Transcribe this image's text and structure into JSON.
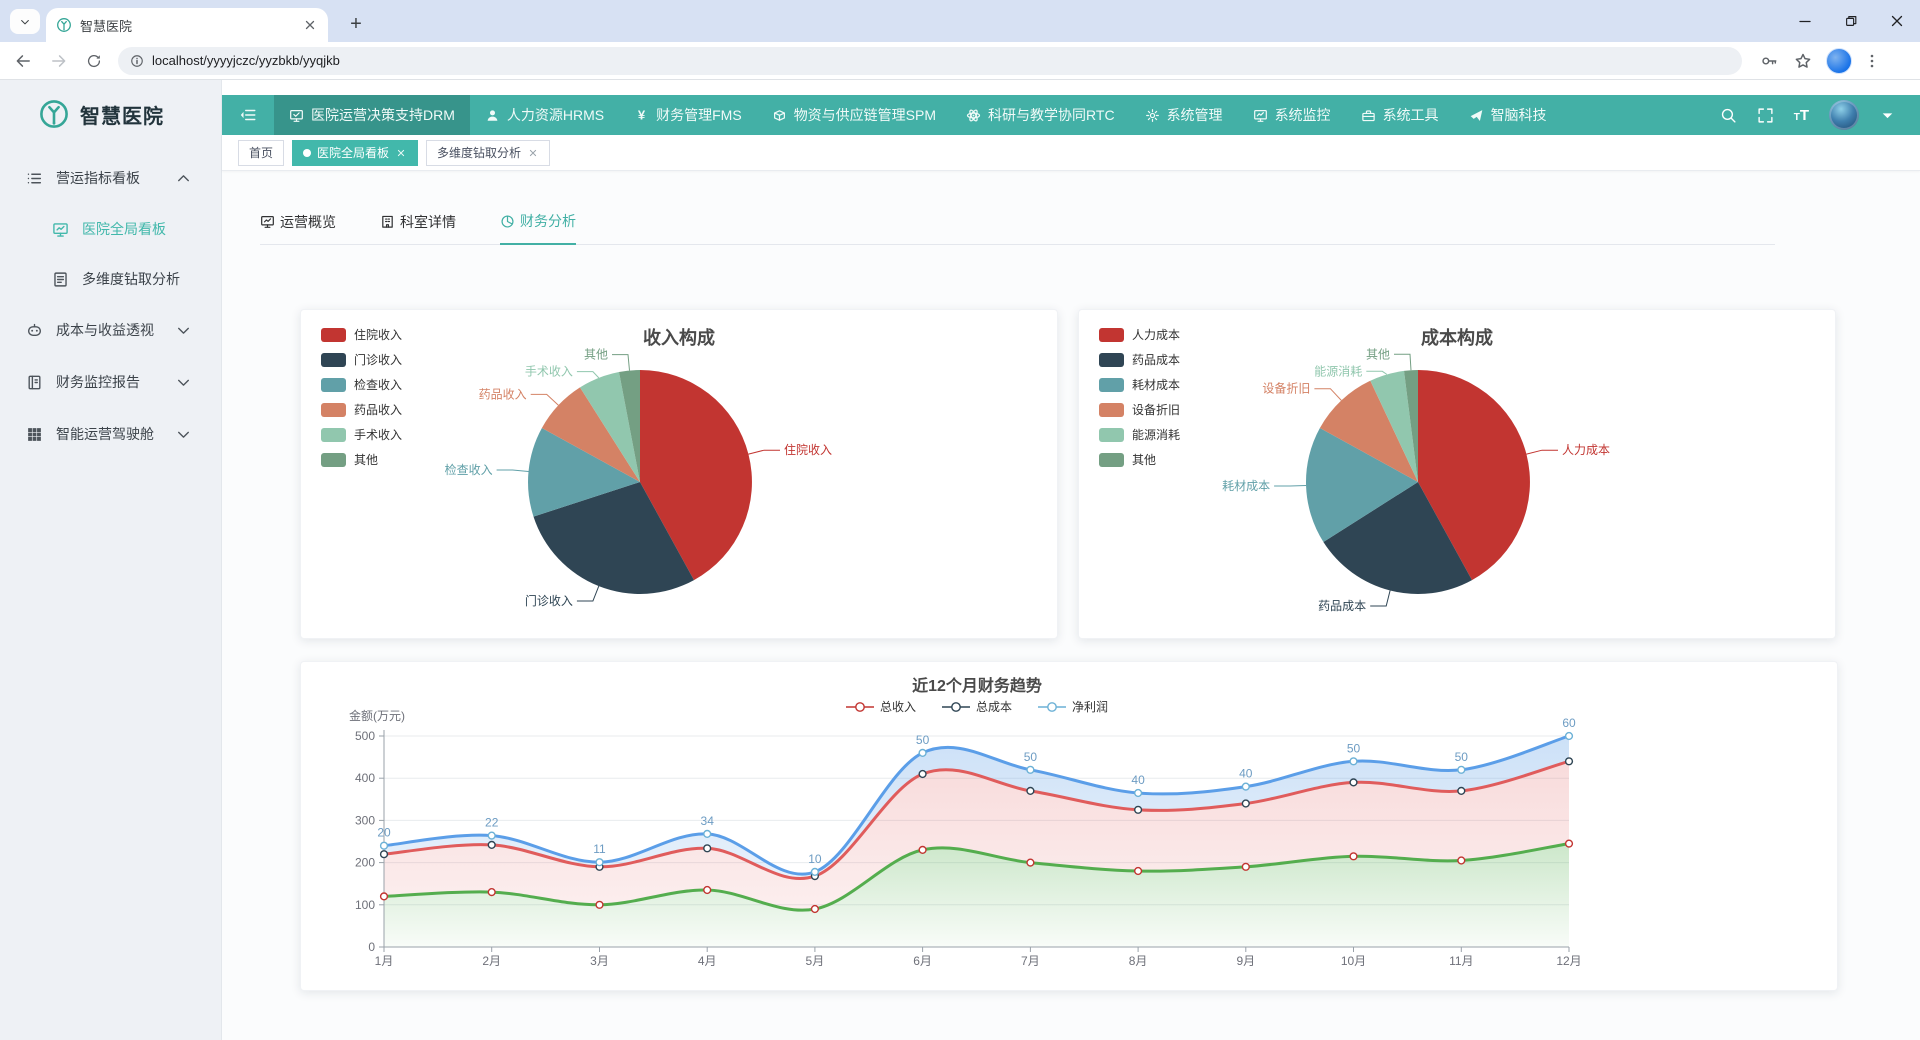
{
  "browser": {
    "tab_title": "智慧医院",
    "url": "localhost/yyyyjczc/yyzbkb/yyqjkb",
    "toolbar_icons": [
      "back",
      "forward",
      "reload",
      "info",
      "key",
      "star",
      "profile-avatar",
      "kebab-menu"
    ],
    "window_icons": [
      "minimize",
      "restore",
      "close"
    ]
  },
  "app": {
    "logo_text": "智慧医院",
    "colors": {
      "primary": "#43b0a6",
      "primary_dark": "#37948b",
      "active_text": "#42b8ab"
    },
    "sidebar": {
      "items": [
        {
          "key": "ops-indicator-board",
          "icon": "list",
          "label": "营运指标看板",
          "chevron": "up",
          "children": [
            {
              "key": "hospital-global-board",
              "icon": "dashboard",
              "label": "医院全局看板",
              "active": true
            },
            {
              "key": "multi-dim-drill",
              "icon": "report",
              "label": "多维度钻取分析"
            }
          ]
        },
        {
          "key": "cost-benefit",
          "icon": "robot",
          "label": "成本与收益透视",
          "chevron": "down"
        },
        {
          "key": "finance-monitor",
          "icon": "ledger",
          "label": "财务监控报告",
          "chevron": "down"
        },
        {
          "key": "smart-cockpit",
          "icon": "grid",
          "label": "智能运营驾驶舱",
          "chevron": "down"
        }
      ]
    },
    "navbar": {
      "items": [
        {
          "key": "drm",
          "icon": "monitor-check",
          "label": "医院运营决策支持DRM",
          "active": true
        },
        {
          "key": "hrms",
          "icon": "user",
          "label": "人力资源HRMS"
        },
        {
          "key": "fms",
          "icon": "yen",
          "label": "财务管理FMS"
        },
        {
          "key": "spm",
          "icon": "supply-box",
          "label": "物资与供应链管理SPM"
        },
        {
          "key": "rtc",
          "icon": "research",
          "label": "科研与教学协同RTC"
        },
        {
          "key": "sys-admin",
          "icon": "gear",
          "label": "系统管理"
        },
        {
          "key": "sys-monitor",
          "icon": "monitor2",
          "label": "系统监控"
        },
        {
          "key": "sys-tools",
          "icon": "toolbox",
          "label": "系统工具"
        },
        {
          "key": "zhinao",
          "icon": "plane",
          "label": "智脑科技"
        }
      ],
      "right_icons": [
        "search",
        "fullscreen",
        "font-size",
        "avatar",
        "caret-down"
      ]
    },
    "tags": [
      {
        "key": "home",
        "label": "首页"
      },
      {
        "key": "hospital-global-board",
        "label": "医院全局看板",
        "active": true,
        "closable": true
      },
      {
        "key": "multi-dim-drill",
        "label": "多维度钻取分析",
        "closable": true
      }
    ],
    "content_tabs": [
      {
        "key": "operation-overview",
        "icon": "dashboard",
        "label": "运营概览"
      },
      {
        "key": "dept-detail",
        "icon": "building",
        "label": "科室详情"
      },
      {
        "key": "finance-analysis",
        "icon": "pie",
        "label": "财务分析",
        "active": true
      }
    ]
  },
  "chart_data": [
    {
      "type": "pie",
      "title": "收入构成",
      "categories": [
        "住院收入",
        "门诊收入",
        "检查收入",
        "药品收入",
        "手术收入",
        "其他"
      ],
      "values": [
        42,
        28,
        13,
        8,
        6,
        3
      ],
      "colors": [
        "#c23531",
        "#2f4554",
        "#61a0a8",
        "#d48265",
        "#91c7ae",
        "#749f83"
      ],
      "legend_position": "top-left"
    },
    {
      "type": "pie",
      "title": "成本构成",
      "categories": [
        "人力成本",
        "药品成本",
        "耗材成本",
        "设备折旧",
        "能源消耗",
        "其他"
      ],
      "values": [
        42,
        24,
        17,
        10,
        5,
        2
      ],
      "colors": [
        "#c23531",
        "#2f4554",
        "#61a0a8",
        "#d48265",
        "#91c7ae",
        "#749f83"
      ],
      "legend_position": "top-left"
    },
    {
      "type": "area",
      "title": "近12个月财务趋势",
      "stacked": true,
      "x": [
        "1月",
        "2月",
        "3月",
        "4月",
        "5月",
        "6月",
        "7月",
        "8月",
        "9月",
        "10月",
        "11月",
        "12月"
      ],
      "ylabel": "金额(万元)",
      "ylim": [
        0,
        500
      ],
      "yticks": [
        0,
        100,
        200,
        300,
        400,
        500
      ],
      "grid": true,
      "legend_position": "top-center",
      "series": [
        {
          "key": "revenue",
          "name": "总收入",
          "values": [
            120,
            130,
            100,
            135,
            90,
            230,
            200,
            180,
            190,
            215,
            205,
            245
          ],
          "line_color": "#54ad4e",
          "marker_color": "#c23531",
          "area_from": "rgba(86,176,80,0.30)",
          "area_to": "rgba(86,176,80,0.04)"
        },
        {
          "key": "cost",
          "name": "总成本",
          "values": [
            100,
            112,
            90,
            99,
            78,
            180,
            170,
            145,
            150,
            175,
            165,
            195
          ],
          "line_color": "#e05c5c",
          "marker_color": "#2f4554",
          "area_from": "rgba(224,92,92,0.22)",
          "area_to": "rgba(224,92,92,0.10)"
        },
        {
          "key": "profit",
          "name": "净利润",
          "values": [
            20,
            22,
            11,
            34,
            10,
            50,
            50,
            40,
            40,
            50,
            50,
            60
          ],
          "line_color": "#5b9ee8",
          "marker_color": "#6cb1d6",
          "area_from": "rgba(96,160,230,0.32)",
          "area_to": "rgba(96,160,230,0.14)",
          "show_labels": true,
          "label_color": "#6d9cc3"
        }
      ]
    }
  ]
}
